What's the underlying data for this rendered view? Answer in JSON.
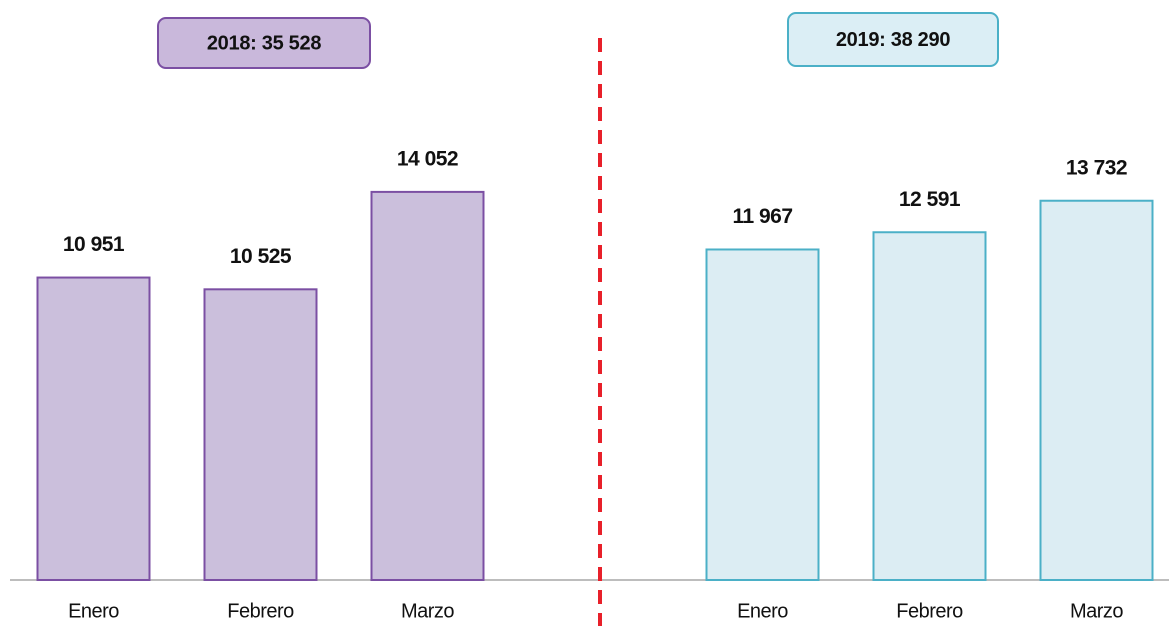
{
  "chart_data": [
    {
      "type": "bar",
      "title": "2018: 35 528",
      "categories": [
        "Enero",
        "Febrero",
        "Marzo"
      ],
      "values": [
        10951,
        10525,
        14052
      ],
      "value_labels": [
        "10 951",
        "10 525",
        "14 052"
      ],
      "color": "#cbbfdc",
      "edge_color": "#7b4fa3",
      "title_color": "#c9b8db",
      "title_edge_color": "#7b4fa3",
      "ylim": [
        0,
        21000
      ]
    },
    {
      "type": "bar",
      "title": "2019: 38 290",
      "categories": [
        "Enero",
        "Febrero",
        "Marzo"
      ],
      "values": [
        11967,
        12591,
        13732
      ],
      "value_labels": [
        "11 967",
        "12 591",
        "13 732"
      ],
      "color": "#dcedf3",
      "edge_color": "#4bb0c7",
      "title_color": "#dbeef5",
      "title_edge_color": "#4bb0c7",
      "ylim": [
        0,
        21000
      ]
    }
  ]
}
